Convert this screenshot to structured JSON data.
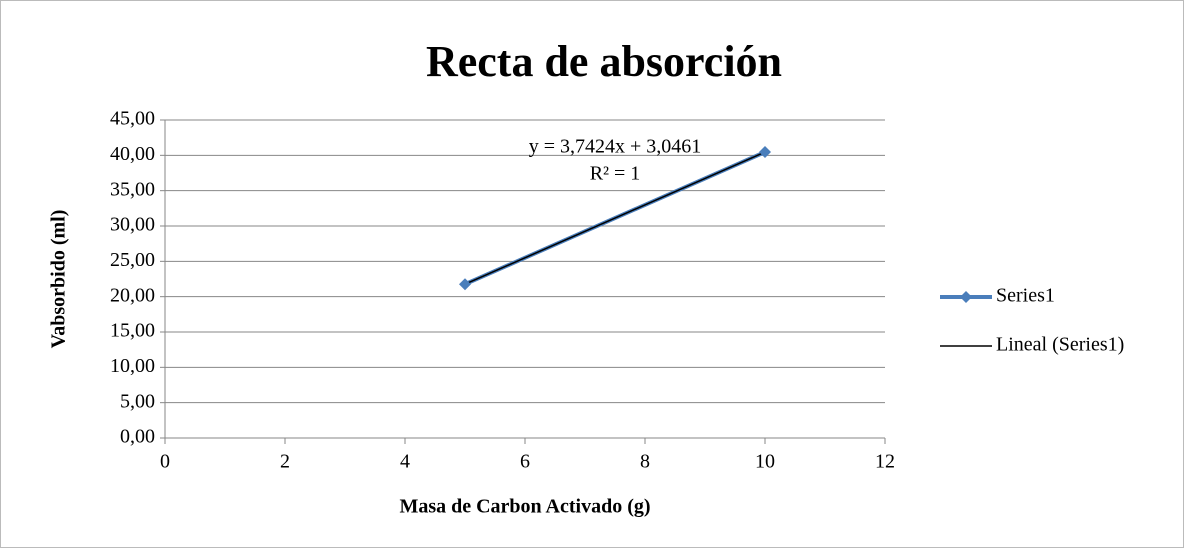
{
  "chart_data": {
    "type": "scatter",
    "title": "Recta de absorción",
    "xlabel": "Masa de Carbon Activado (g)",
    "ylabel": "Vabsorbido (ml)",
    "x": [
      5,
      10
    ],
    "series": [
      {
        "name": "Series1",
        "color": "#4a7ebb",
        "values": [
          21.76,
          40.47
        ]
      }
    ],
    "trendline": {
      "name": "Lineal (Series1)",
      "color": "#000000"
    },
    "annotations": [
      "y = 3,7424x + 3,0461",
      "R² = 1"
    ],
    "xlim": [
      0,
      12
    ],
    "xticks": [
      0,
      2,
      4,
      6,
      8,
      10,
      12
    ],
    "ylim": [
      0,
      45
    ],
    "yticks": [
      {
        "value": 0,
        "label": "0,00"
      },
      {
        "value": 5,
        "label": "5,00"
      },
      {
        "value": 10,
        "label": "10,00"
      },
      {
        "value": 15,
        "label": "15,00"
      },
      {
        "value": 20,
        "label": "20,00"
      },
      {
        "value": 25,
        "label": "25,00"
      },
      {
        "value": 30,
        "label": "30,00"
      },
      {
        "value": 35,
        "label": "35,00"
      },
      {
        "value": 40,
        "label": "40,00"
      },
      {
        "value": 45,
        "label": "45,00"
      }
    ],
    "grid": true,
    "legend": "right"
  }
}
